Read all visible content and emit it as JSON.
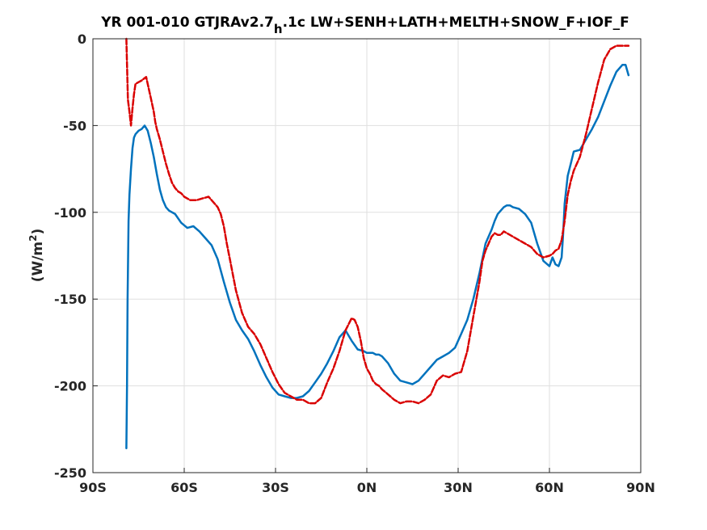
{
  "chart_data": {
    "type": "line",
    "title_main": "YR 001-010 GTJRAv2.7",
    "title_sub": "h",
    "title_rest": ".1c LW+SENH+LATH+MELTH+SNOW_F+IOF_F",
    "ylabel_main": "(W/m",
    "ylabel_sup": "2",
    "ylabel_end": ")",
    "xlim": [
      -90,
      90
    ],
    "ylim": [
      -250,
      0
    ],
    "x_ticks": [
      -90,
      -60,
      -30,
      0,
      30,
      60,
      90
    ],
    "x_tick_labels": [
      "90S",
      "60S",
      "30S",
      "0N",
      "30N",
      "60N",
      "90N"
    ],
    "y_ticks": [
      -250,
      -200,
      -150,
      -100,
      -50,
      0
    ],
    "y_tick_labels": [
      "-250",
      "-200",
      "-150",
      "-100",
      "-50",
      "0"
    ],
    "grid": true,
    "series": [
      {
        "color": "#0072BD",
        "style": "solid",
        "x": [
          -79,
          -78.8,
          -78.6,
          -78.3,
          -78,
          -77.5,
          -77,
          -76.5,
          -76,
          -75,
          -74,
          -73,
          -72,
          -71,
          -70,
          -69,
          -68,
          -67,
          -66,
          -65,
          -63,
          -61,
          -59,
          -57,
          -55,
          -53,
          -51,
          -49,
          -47,
          -45,
          -43,
          -41,
          -39,
          -37,
          -35,
          -33,
          -31,
          -29,
          -27,
          -25,
          -23,
          -21,
          -19,
          -17,
          -15,
          -13,
          -11,
          -9,
          -7,
          -5,
          -3,
          -1,
          0,
          1,
          2,
          3,
          4,
          5,
          7,
          9,
          11,
          13,
          15,
          17,
          19,
          21,
          23,
          25,
          27,
          29,
          31,
          33,
          35,
          37,
          39,
          41,
          42,
          43,
          44,
          45,
          46,
          47,
          48,
          50,
          52,
          54,
          56,
          58,
          60,
          61,
          62,
          63,
          64,
          64.5,
          65,
          66,
          67,
          68,
          70,
          72,
          74,
          76,
          78,
          80,
          82,
          84,
          85,
          86
        ],
        "values": [
          -236,
          -200,
          -150,
          -105,
          -90,
          -75,
          -63,
          -57,
          -55,
          -53,
          -52,
          -50,
          -53,
          -60,
          -68,
          -78,
          -87,
          -93,
          -97,
          -99,
          -101,
          -106,
          -109,
          -108,
          -111,
          -115,
          -119,
          -127,
          -140,
          -152,
          -162,
          -168,
          -173,
          -180,
          -188,
          -195,
          -201,
          -205,
          -206,
          -207,
          -207,
          -206,
          -203,
          -198,
          -193,
          -187,
          -180,
          -172,
          -168,
          -174,
          -179,
          -180,
          -181,
          -181,
          -181,
          -182,
          -182,
          -183,
          -187,
          -193,
          -197,
          -198,
          -199,
          -197,
          -193,
          -189,
          -185,
          -183,
          -181,
          -178,
          -170,
          -162,
          -150,
          -135,
          -118,
          -110,
          -105,
          -101,
          -99,
          -97,
          -96,
          -96,
          -97,
          -98,
          -101,
          -106,
          -118,
          -128,
          -131,
          -126,
          -130,
          -131,
          -126,
          -113,
          -95,
          -79,
          -72,
          -65,
          -64,
          -58,
          -52,
          -45,
          -36,
          -27,
          -19,
          -15,
          -15,
          -21
        ]
      },
      {
        "color": "#D90000",
        "style": "dashed",
        "x": [
          -79,
          -78.5,
          -78,
          -77.5,
          -77,
          -76.5,
          -76,
          -75,
          -74,
          -72.5,
          -71,
          -70,
          -69.5,
          -69,
          -68,
          -67,
          -66,
          -65,
          -64,
          -63,
          -62,
          -61,
          -60,
          -58,
          -56,
          -54,
          -52,
          -51,
          -49,
          -48,
          -47,
          -46,
          -45,
          -43,
          -41,
          -39,
          -37,
          -35,
          -33,
          -31,
          -29,
          -27,
          -25,
          -23,
          -21,
          -19,
          -17,
          -15,
          -13,
          -11,
          -9,
          -7,
          -5,
          -4,
          -3,
          -2,
          -1,
          0,
          1,
          2,
          3,
          4,
          5,
          7,
          9,
          11,
          13,
          15,
          17,
          19,
          21,
          23,
          25,
          27,
          29,
          31,
          33,
          35,
          37,
          38,
          39,
          40,
          41,
          42,
          43,
          44,
          45,
          46,
          47,
          48,
          50,
          52,
          54,
          56,
          58,
          60,
          61,
          62,
          63,
          64,
          65,
          66,
          67,
          68,
          70,
          72,
          74,
          76,
          78,
          80,
          82,
          83,
          84,
          86
        ],
        "values": [
          0,
          -35,
          -42,
          -50,
          -40,
          -32,
          -26,
          -25,
          -24,
          -22,
          -34,
          -42,
          -48,
          -52,
          -58,
          -65,
          -72,
          -78,
          -83,
          -86,
          -88,
          -89,
          -91,
          -93,
          -93,
          -92,
          -91,
          -93,
          -97,
          -101,
          -108,
          -118,
          -127,
          -145,
          -158,
          -166,
          -170,
          -176,
          -184,
          -192,
          -199,
          -204,
          -206,
          -208,
          -208,
          -210,
          -210,
          -207,
          -198,
          -190,
          -180,
          -168,
          -161,
          -162,
          -166,
          -174,
          -184,
          -190,
          -193,
          -197,
          -199,
          -200,
          -202,
          -205,
          -208,
          -210,
          -209,
          -209,
          -210,
          -208,
          -205,
          -197,
          -194,
          -195,
          -193,
          -192,
          -180,
          -160,
          -140,
          -128,
          -122,
          -118,
          -114,
          -112,
          -113,
          -113,
          -111,
          -112,
          -113,
          -114,
          -116,
          -118,
          -120,
          -124,
          -126,
          -125,
          -124,
          -122,
          -121,
          -116,
          -105,
          -90,
          -82,
          -76,
          -68,
          -55,
          -40,
          -25,
          -12,
          -6,
          -4,
          -4,
          -4,
          -4
        ]
      }
    ]
  }
}
